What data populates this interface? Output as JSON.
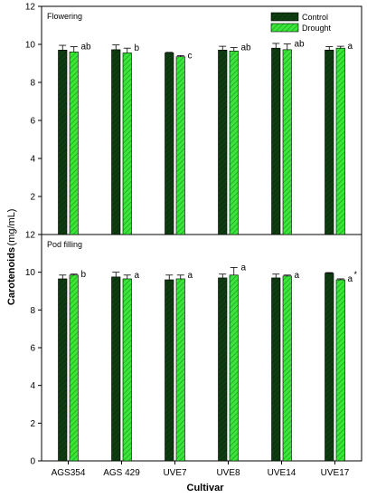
{
  "chart_data": {
    "type": "bar",
    "ylabel": "Carotenoids",
    "ylabel_unit": "(mg/mL)",
    "xlabel": "Cultivar",
    "categories": [
      "AGS354",
      "AGS 429",
      "UVE7",
      "UVE8",
      "UVE14",
      "UVE17"
    ],
    "ylim": [
      0,
      12
    ],
    "yticks": [
      "0",
      "2",
      "4",
      "6",
      "8",
      "10",
      "12"
    ],
    "legend": {
      "position": "top-right",
      "entries": [
        "Control",
        "Drought"
      ]
    },
    "colors": {
      "control": "#0f3d12",
      "drought": "#39e639",
      "axis": "#000000"
    },
    "panels": [
      {
        "label": "Flowering",
        "series": [
          {
            "name": "Control",
            "values": [
              9.7,
              9.72,
              9.55,
              9.7,
              9.8,
              9.7
            ],
            "errors": [
              0.25,
              0.25,
              0.03,
              0.2,
              0.25,
              0.18
            ]
          },
          {
            "name": "Drought",
            "values": [
              9.6,
              9.55,
              9.35,
              9.65,
              9.72,
              9.8
            ],
            "errors": [
              0.28,
              0.25,
              0.06,
              0.18,
              0.3,
              0.1
            ]
          }
        ],
        "annotations": [
          "ab",
          "b",
          "c",
          "ab",
          "ab",
          "a"
        ]
      },
      {
        "label": "Pod filling",
        "series": [
          {
            "name": "Control",
            "values": [
              9.65,
              9.75,
              9.6,
              9.7,
              9.7,
              9.95
            ],
            "errors": [
              0.2,
              0.25,
              0.25,
              0.2,
              0.2,
              0.03
            ]
          },
          {
            "name": "Drought",
            "values": [
              9.85,
              9.65,
              9.65,
              9.85,
              9.8,
              9.6
            ],
            "errors": [
              0.05,
              0.2,
              0.2,
              0.4,
              0.05,
              0.05
            ]
          }
        ],
        "annotations": [
          "b",
          "a",
          "a",
          "a",
          "a",
          "a"
        ],
        "marks": [
          "",
          "",
          "",
          "",
          "",
          "*"
        ]
      }
    ]
  }
}
